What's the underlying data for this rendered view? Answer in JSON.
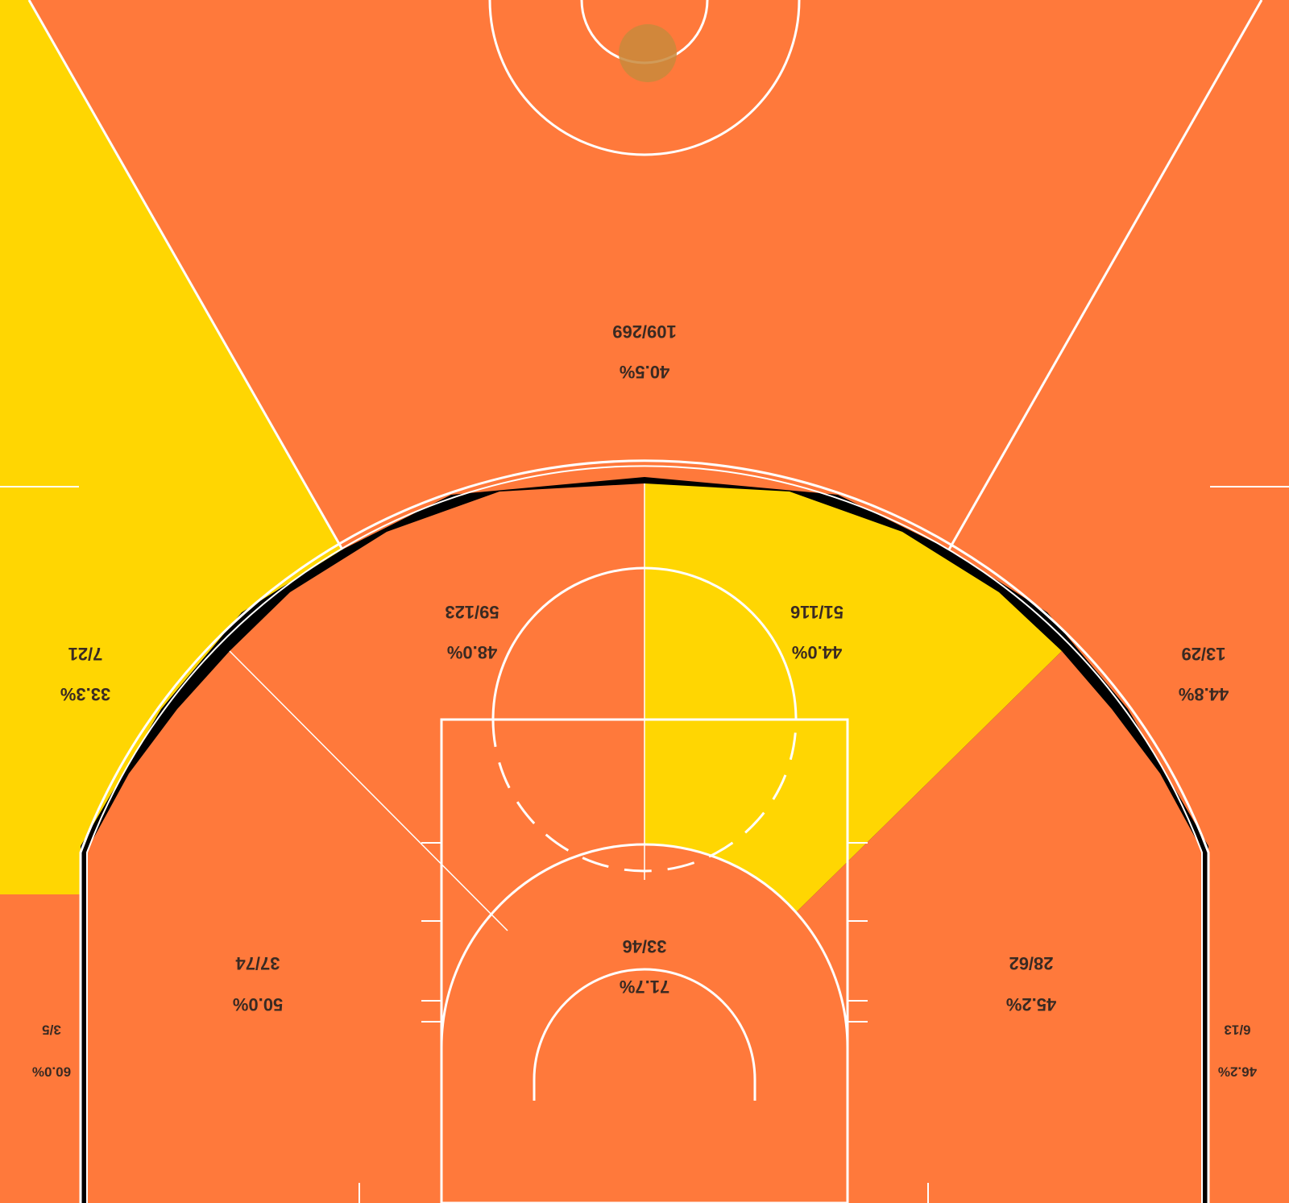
{
  "chart_data": {
    "type": "heatmap",
    "orientation": "rotated-180",
    "title": "",
    "colors": {
      "court": "#ff793b",
      "hot": "#ffd602",
      "lines": "#ffffff",
      "text": "#3a2a22",
      "ball": "#c98a3c",
      "background": "#000000"
    },
    "zones": [
      {
        "id": "top-three",
        "made_attempts": "109/269",
        "pct": "40.5%",
        "made": 109,
        "attempts": 269,
        "hot": false
      },
      {
        "id": "right-wing-three",
        "made_attempts": "7/21",
        "pct": "33.3%",
        "made": 7,
        "attempts": 21,
        "hot": true
      },
      {
        "id": "left-wing-three",
        "made_attempts": "13/29",
        "pct": "44.8%",
        "made": 13,
        "attempts": 29,
        "hot": false
      },
      {
        "id": "right-elbow-mid",
        "made_attempts": "59/123",
        "pct": "48.0%",
        "made": 59,
        "attempts": 123,
        "hot": false
      },
      {
        "id": "left-elbow-mid",
        "made_attempts": "51/116",
        "pct": "44.0%",
        "made": 51,
        "attempts": 116,
        "hot": true
      },
      {
        "id": "right-baseline-mid",
        "made_attempts": "37/74",
        "pct": "50.0%",
        "made": 37,
        "attempts": 74,
        "hot": false
      },
      {
        "id": "left-baseline-mid",
        "made_attempts": "28/62",
        "pct": "45.2%",
        "made": 28,
        "attempts": 62,
        "hot": false
      },
      {
        "id": "restricted-area",
        "made_attempts": "33/46",
        "pct": "71.7%",
        "made": 33,
        "attempts": 46,
        "hot": false
      },
      {
        "id": "right-corner-three",
        "made_attempts": "3/5",
        "pct": "60.0%",
        "made": 3,
        "attempts": 5,
        "hot": false
      },
      {
        "id": "left-corner-three",
        "made_attempts": "6/13",
        "pct": "46.2%",
        "made": 6,
        "attempts": 13,
        "hot": false
      }
    ]
  }
}
